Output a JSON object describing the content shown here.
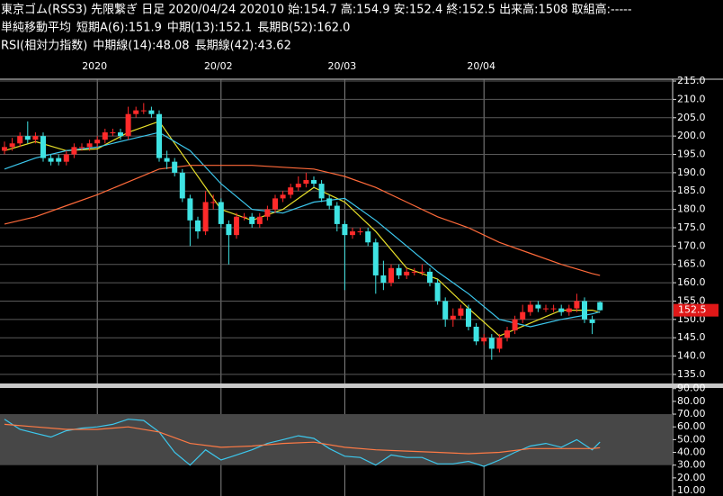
{
  "chart_data": [
    {
      "type": "candlestick",
      "title": "東京ゴム(RSS3) 先限繋ぎ 日足 2020/04/24 202010 始:154.7 高:154.9 安:152.4 終:152.5 出来高:1508 取組高:-----",
      "overlay_title": "単純移動平均",
      "categories": [
        null,
        null,
        null,
        null,
        null,
        null,
        null,
        null,
        null,
        null,
        null,
        null,
        "2020",
        null,
        null,
        null,
        null,
        null,
        null,
        null,
        null,
        null,
        null,
        null,
        null,
        null,
        null,
        null,
        "20/02",
        null,
        null,
        null,
        null,
        null,
        null,
        null,
        null,
        null,
        null,
        null,
        null,
        null,
        null,
        null,
        "20/03",
        null,
        null,
        null,
        null,
        null,
        null,
        null,
        null,
        null,
        null,
        null,
        null,
        null,
        null,
        null,
        null,
        null,
        "20/04",
        null,
        null,
        null,
        null,
        null,
        null,
        null,
        null,
        null,
        null,
        null,
        null,
        null,
        null,
        null
      ],
      "open": [
        196,
        197,
        198,
        200,
        199,
        200,
        194,
        194,
        193,
        195,
        197,
        197,
        198,
        199,
        201,
        201,
        200,
        206,
        207,
        207,
        206,
        194,
        193,
        190,
        183,
        177,
        174,
        182,
        182,
        176,
        173,
        178,
        178,
        176,
        178,
        180,
        183,
        184,
        186,
        187,
        188,
        187,
        183,
        181,
        176,
        173,
        174,
        174,
        171,
        162,
        160,
        164,
        162,
        163,
        163,
        163,
        160,
        155,
        150,
        151,
        153,
        148,
        144,
        145,
        142,
        145,
        147,
        150,
        152,
        154,
        153,
        153,
        153,
        152,
        153,
        155,
        150,
        154.7
      ],
      "high": [
        198.5,
        199.5,
        201,
        204,
        201,
        201,
        195,
        195,
        196,
        198,
        198,
        199,
        200,
        202,
        202,
        202,
        208,
        208,
        209,
        208,
        207,
        196,
        194,
        191,
        184,
        178,
        185,
        184,
        183,
        177,
        179,
        179,
        179,
        179,
        181,
        184,
        185,
        187,
        189,
        190,
        189,
        188,
        184,
        182,
        177,
        175,
        175,
        175,
        172,
        166,
        165,
        165,
        164,
        164,
        165,
        164,
        161,
        156,
        153,
        154,
        154,
        149,
        146,
        146,
        146,
        148,
        151,
        154,
        155,
        155,
        154,
        154,
        154,
        154,
        157,
        156,
        151,
        154.9
      ],
      "low": [
        195,
        196,
        197,
        198,
        198,
        193,
        192,
        192,
        192,
        194,
        196,
        196,
        197,
        198,
        200,
        199,
        199,
        205,
        206,
        205,
        193,
        191,
        189,
        182,
        170,
        172,
        173,
        180,
        175,
        165,
        172,
        177,
        175,
        175,
        177,
        179,
        182,
        183,
        185,
        186,
        186,
        182,
        180,
        174,
        158,
        172,
        173,
        170,
        157,
        158,
        159,
        161,
        161,
        162,
        162,
        159,
        154,
        148,
        148,
        150,
        147,
        143,
        143,
        139,
        141,
        144,
        146,
        149,
        151,
        152,
        152,
        152,
        151,
        151,
        152,
        149,
        146,
        152.4
      ],
      "close": [
        197,
        198,
        200,
        199,
        200,
        194,
        193,
        193,
        195,
        197,
        197,
        198,
        199,
        201,
        201,
        200,
        206,
        207,
        207,
        206,
        194,
        193,
        190,
        183,
        177,
        174,
        182,
        182,
        176,
        173,
        178,
        178,
        176,
        178,
        180,
        183,
        184,
        186,
        187,
        188,
        187,
        183,
        181,
        176,
        173,
        174,
        174,
        171,
        162,
        160,
        164,
        162,
        163,
        163,
        163,
        160,
        155,
        150,
        151,
        153,
        148,
        144,
        145,
        142,
        145,
        147,
        150,
        152,
        154,
        153,
        153,
        153,
        152,
        153,
        155,
        150,
        149,
        152.5
      ],
      "up_color": "#ff2a2a",
      "down_color": "#3fe3e3",
      "ylim": [
        134,
        215.5
      ],
      "yticks": [
        {
          "value": 215,
          "label": "215.0"
        },
        {
          "value": 210,
          "label": "210.0"
        },
        {
          "value": 205,
          "label": "205.0"
        },
        {
          "value": 200,
          "label": "200.0"
        },
        {
          "value": 195,
          "label": "195.0"
        },
        {
          "value": 190,
          "label": "190.0"
        },
        {
          "value": 185,
          "label": "185.0"
        },
        {
          "value": 180,
          "label": "180.0"
        },
        {
          "value": 175,
          "label": "175.0"
        },
        {
          "value": 170,
          "label": "170.0"
        },
        {
          "value": 165,
          "label": "165.0"
        },
        {
          "value": 160,
          "label": "160.0"
        },
        {
          "value": 155,
          "label": "155.0"
        },
        {
          "value": 150,
          "label": "150.0"
        },
        {
          "value": 145,
          "label": "145.0"
        },
        {
          "value": 140,
          "label": "140.0"
        },
        {
          "value": 135,
          "label": "135.0"
        }
      ],
      "grid": true,
      "overlays": [
        {
          "name": "短期A(6):151.9",
          "color": "#e8e02a",
          "x": [
            0,
            4,
            8,
            12,
            16,
            20,
            24,
            28,
            32,
            36,
            40,
            44,
            48,
            52,
            56,
            60,
            64,
            68,
            72,
            76,
            77
          ],
          "values": [
            196,
            198.5,
            196,
            196.5,
            201,
            204,
            192,
            180,
            177,
            180,
            186,
            182,
            174,
            164,
            161,
            153,
            145.5,
            149,
            152.5,
            152.5,
            151.9
          ]
        },
        {
          "name": "中期(13):152.1",
          "color": "#3cc8ee",
          "x": [
            0,
            4,
            8,
            12,
            16,
            20,
            24,
            28,
            32,
            36,
            40,
            44,
            48,
            52,
            56,
            60,
            64,
            68,
            72,
            76,
            77
          ],
          "values": [
            191,
            194,
            196,
            197,
            199,
            201,
            196,
            187,
            180,
            179,
            182,
            183,
            177,
            170,
            163,
            157,
            150,
            148,
            150,
            151.5,
            152.1
          ]
        },
        {
          "name": "長期B(52):162.0",
          "color": "#ff6a3a",
          "x": [
            0,
            4,
            8,
            12,
            16,
            20,
            24,
            28,
            32,
            36,
            40,
            44,
            48,
            52,
            56,
            60,
            64,
            68,
            72,
            76,
            77
          ],
          "values": [
            176,
            178,
            181,
            184,
            187.5,
            191,
            192,
            192,
            192,
            191.5,
            191,
            189,
            186,
            182,
            178,
            175,
            171,
            168,
            165,
            162.5,
            162.0
          ]
        }
      ]
    },
    {
      "type": "line",
      "title": "RSI(相対力指数)",
      "ylim": [
        6.5,
        90.5
      ],
      "yticks": [
        {
          "value": 90,
          "label": "90.00"
        },
        {
          "value": 80,
          "label": "80.00"
        },
        {
          "value": 70,
          "label": "70.00"
        },
        {
          "value": 60,
          "label": "60.00"
        },
        {
          "value": 50,
          "label": "50.00"
        },
        {
          "value": 40,
          "label": "40.00"
        },
        {
          "value": 30,
          "label": "30.00"
        },
        {
          "value": 20,
          "label": "20.00"
        },
        {
          "value": 10,
          "label": "10.00"
        }
      ],
      "shade_range": [
        30,
        70
      ],
      "series": [
        {
          "name": "中期線(14):48.08",
          "color": "#3cc8ee",
          "x": [
            0,
            2,
            4,
            6,
            8,
            10,
            12,
            14,
            16,
            18,
            20,
            22,
            24,
            26,
            28,
            30,
            32,
            34,
            36,
            38,
            40,
            42,
            44,
            46,
            48,
            50,
            52,
            54,
            56,
            58,
            60,
            62,
            64,
            66,
            68,
            70,
            72,
            74,
            76,
            77
          ],
          "values": [
            66,
            58,
            55,
            52,
            57,
            59,
            60,
            62,
            66,
            65,
            56,
            40,
            30,
            42,
            34,
            38,
            42,
            47,
            50,
            53,
            51,
            43,
            37,
            36,
            30,
            38,
            36,
            36,
            31,
            31,
            33,
            29,
            34,
            40,
            45,
            47,
            44,
            50,
            42,
            48.08
          ]
        },
        {
          "name": "長期線(42):43.62",
          "color": "#ff7a45",
          "x": [
            0,
            4,
            8,
            12,
            16,
            20,
            24,
            28,
            32,
            36,
            40,
            44,
            48,
            52,
            56,
            60,
            64,
            68,
            72,
            76,
            77
          ],
          "values": [
            62,
            60,
            58,
            58,
            60,
            56,
            47,
            44,
            45,
            47,
            48,
            44,
            42,
            41,
            40,
            39,
            40,
            43,
            43,
            43,
            43.62
          ]
        }
      ]
    }
  ]
}
